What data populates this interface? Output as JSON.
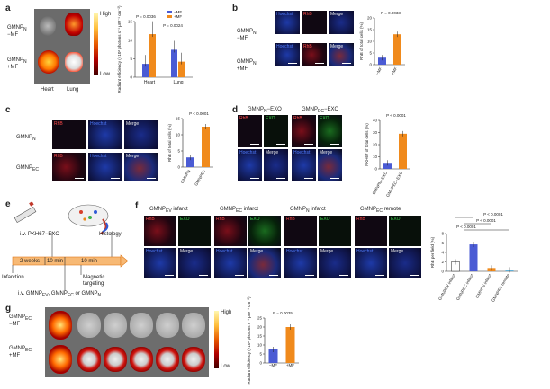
{
  "panels": {
    "a": {
      "label": "a",
      "row1": "GMNP",
      "row1_sub": "N",
      "row1_line2": "−MF",
      "row2": "GMNP",
      "row2_sub": "N",
      "row2_line2": "+MF",
      "organ1": "Heart",
      "organ2": "Lung",
      "scale_high": "High",
      "scale_low": "Low"
    },
    "b": {
      "label": "b",
      "row1": "GMNP",
      "row1_sub": "N",
      "row1_line2": "−MF",
      "row2": "GMNP",
      "row2_sub": "N",
      "row2_line2": "+MF",
      "channels": [
        "Hoechst",
        "RhB",
        "Merge"
      ]
    },
    "c": {
      "label": "c",
      "row1": "GMNP",
      "row1_sub": "N",
      "row2": "GMNP",
      "row2_sub": "EC",
      "channels": [
        "RhB",
        "Hoechst",
        "Merge"
      ]
    },
    "d": {
      "label": "d",
      "group1": "GMNP",
      "group1_sub": "N",
      "group1_suffix": "−EXO",
      "group2": "GMNP",
      "group2_sub": "EC",
      "group2_suffix": "−EXO",
      "channels_top": [
        "RhB",
        "EXO"
      ],
      "channels_bottom": [
        "Hoechst",
        "Merge"
      ]
    },
    "e": {
      "label": "e",
      "inject": "i.v. PKH67−EXO",
      "histology": "Histology",
      "weeks": "2 weeks",
      "min1": "10 min",
      "min2": "10 min",
      "infarction": "Infarction",
      "magnetic": "Magnetic",
      "targeting": "targeting",
      "iv2": "i.v. GMNP",
      "iv2_rest": ", GMNP",
      "iv2_end": " or GMNP",
      "sub_ev": "EV",
      "sub_ec": "EC",
      "sub_n": "N"
    },
    "f": {
      "label": "f",
      "groups": [
        {
          "name": "GMNP",
          "sub": "EV",
          "rest": " infarct"
        },
        {
          "name": "GMNP",
          "sub": "EC",
          "rest": " infarct"
        },
        {
          "name": "GMNP",
          "sub": "N",
          "rest": " infarct"
        },
        {
          "name": "GMNP",
          "sub": "EC",
          "rest": " remote"
        }
      ],
      "channels_top": [
        "RhB",
        "EXO"
      ],
      "channels_bottom": [
        "Hoechst",
        "Merge"
      ]
    },
    "g": {
      "label": "g",
      "row1": "GMNP",
      "row1_sub": "EC",
      "row1_line2": "−MF",
      "row2": "GMNP",
      "row2_sub": "EC",
      "row2_line2": "+MF",
      "scale_high": "High",
      "scale_low": "Low"
    }
  },
  "colors": {
    "orange": "#f08a1c",
    "blue": "#4a5bd4",
    "error": "#222222"
  },
  "chart_data": [
    {
      "id": "a",
      "type": "bar",
      "categories": [
        "Heart",
        "Lung"
      ],
      "series": [
        {
          "name": "−MF",
          "values": [
            3.6,
            7.4
          ]
        },
        {
          "name": "+MF",
          "values": [
            11.6,
            4.2
          ]
        }
      ],
      "ylabel": "Radiant efficiency (×10⁸ photons s⁻¹ μW⁻¹ cm⁻²)",
      "ylim": [
        0,
        15
      ],
      "yticks": [
        0,
        5,
        10,
        15
      ],
      "pvalues": [
        "P = 0.0036",
        "P = 0.0024"
      ],
      "legend": "top-right"
    },
    {
      "id": "b",
      "type": "bar",
      "categories": [
        "−MF",
        "+MF"
      ],
      "values": [
        3,
        13
      ],
      "ylabel": "RhB of total cells (%)",
      "ylim": [
        0,
        20
      ],
      "yticks": [
        0,
        5,
        10,
        15,
        20
      ],
      "pvalue": "P = 0.0033"
    },
    {
      "id": "c",
      "type": "bar",
      "categories": [
        "GMNP_N",
        "GMNP_EC"
      ],
      "values": [
        3,
        12.5
      ],
      "ylabel": "RhB of total cells (%)",
      "ylim": [
        0,
        15
      ],
      "yticks": [
        0,
        5,
        10,
        15
      ],
      "pvalue": "P < 0.0001"
    },
    {
      "id": "d",
      "type": "bar",
      "categories": [
        "GMNP_N−EXO",
        "GMNP_EC−EXO"
      ],
      "values": [
        5,
        29
      ],
      "ylabel": "PKH67 of total cells (%)",
      "ylim": [
        0,
        40
      ],
      "yticks": [
        0,
        10,
        20,
        30,
        40
      ],
      "pvalue": "P < 0.0001"
    },
    {
      "id": "f",
      "type": "bar",
      "categories": [
        "GMNP_EV infarct",
        "GMNP_EC infarct",
        "GMNP_N infarct",
        "GMNP_EC remote"
      ],
      "values": [
        2,
        5.7,
        0.7,
        0.3
      ],
      "ylabel": "RhB per field (%)",
      "ylim": [
        0,
        8
      ],
      "yticks": [
        0,
        2,
        4,
        6,
        8
      ],
      "pvalues": [
        "P < 0.0001",
        "P < 0.0001",
        "P < 0.0001"
      ]
    },
    {
      "id": "g",
      "type": "bar",
      "categories": [
        "−MF",
        "+MF"
      ],
      "values": [
        7.5,
        20
      ],
      "ylabel": "Radiant efficiency (×10⁸ photons s⁻¹ μW⁻¹ cm⁻²)",
      "ylim": [
        0,
        25
      ],
      "yticks": [
        0,
        5,
        10,
        15,
        20,
        25
      ],
      "pvalue": "P = 0.0035"
    }
  ]
}
